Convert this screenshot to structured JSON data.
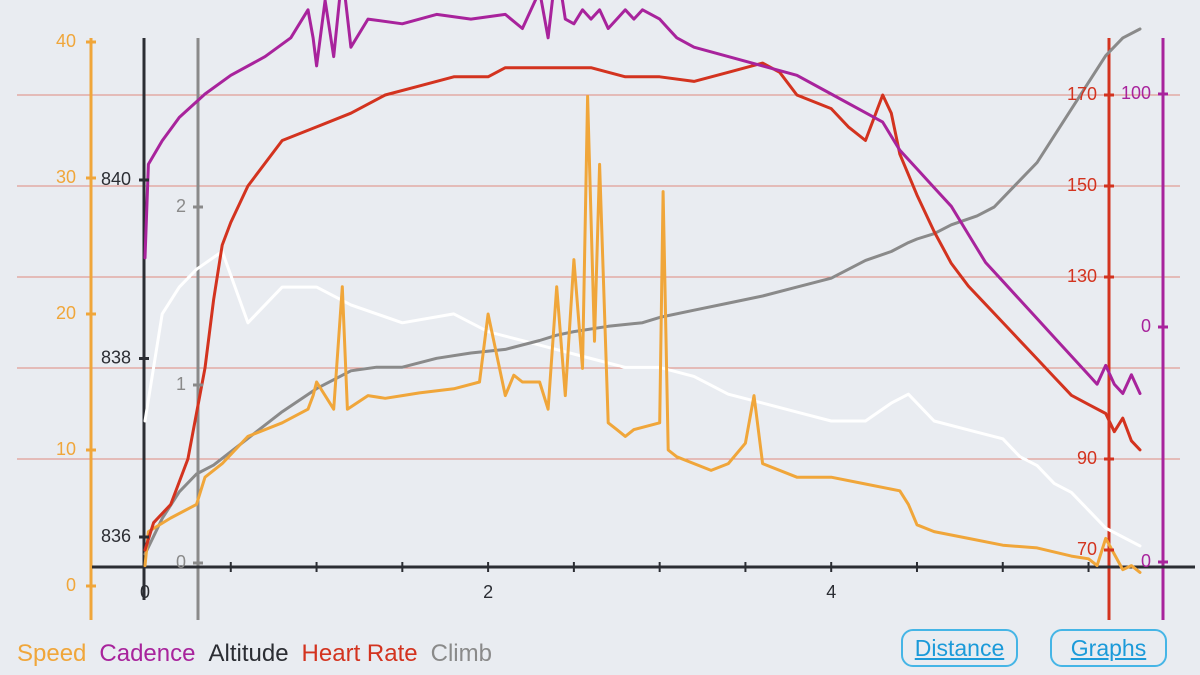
{
  "colors": {
    "speed": "#f0a63a",
    "cadence": "#a8239c",
    "altitude": "#2b2d33",
    "altitude_line": "#ffffff",
    "heart_rate": "#d3331f",
    "climb": "#8a8a8a",
    "accent": "#1b9ad9",
    "background": "#e9ecf1"
  },
  "legend": {
    "speed": "Speed",
    "cadence": "Cadence",
    "altitude": "Altitude",
    "heart_rate": "Heart Rate",
    "climb": "Climb"
  },
  "buttons": {
    "distance": "Distance",
    "graphs": "Graphs"
  },
  "chart_data": {
    "type": "line",
    "title": "",
    "xlabel": "",
    "x_ticks": [
      "0",
      "2",
      "4"
    ],
    "xlim": [
      0,
      5.8
    ],
    "axes": {
      "speed": {
        "ticks": [
          "0",
          "10",
          "20",
          "30",
          "40"
        ],
        "range": [
          0,
          40
        ]
      },
      "altitude": {
        "ticks": [
          "836",
          "838",
          "840"
        ],
        "range": [
          835.6,
          841.6
        ]
      },
      "climb": {
        "ticks": [
          "0",
          "1",
          "2"
        ],
        "range": [
          0,
          3.05
        ]
      },
      "heart_rate": {
        "ticks": [
          "70",
          "90",
          "130",
          "150",
          "170"
        ],
        "range": [
          62,
          190
        ]
      },
      "cadence": {
        "ticks": [
          "0",
          "0",
          "100"
        ],
        "range": [
          0,
          110
        ]
      }
    },
    "series": [
      {
        "name": "Speed",
        "axis": "speed",
        "x": [
          0,
          0.02,
          0.15,
          0.3,
          0.35,
          0.45,
          0.6,
          0.8,
          0.95,
          0.98,
          1.0,
          1.1,
          1.15,
          1.18,
          1.3,
          1.4,
          1.5,
          1.6,
          1.8,
          1.95,
          2.0,
          2.05,
          2.1,
          2.15,
          2.2,
          2.3,
          2.35,
          2.4,
          2.45,
          2.5,
          2.55,
          2.58,
          2.62,
          2.65,
          2.7,
          2.75,
          2.8,
          2.85,
          3.0,
          3.02,
          3.05,
          3.1,
          3.2,
          3.3,
          3.4,
          3.5,
          3.55,
          3.6,
          3.8,
          3.9,
          4.0,
          4.2,
          4.4,
          4.45,
          4.5,
          4.6,
          4.8,
          5.0,
          5.2,
          5.4,
          5.5,
          5.55,
          5.6,
          5.7,
          5.75,
          5.8
        ],
        "values": [
          1.5,
          4,
          5,
          6,
          8,
          9,
          11,
          12,
          13,
          14,
          15,
          13,
          22,
          13,
          14,
          13.8,
          14,
          14.2,
          14.5,
          15,
          20,
          17,
          14,
          15.5,
          15,
          15,
          13,
          22,
          14,
          24,
          16,
          36,
          18,
          31,
          12,
          11.5,
          11,
          11.5,
          12,
          29,
          10,
          9.5,
          9,
          8.5,
          9,
          10.5,
          14,
          9,
          8,
          8,
          8,
          7.5,
          7,
          6,
          4.5,
          4,
          3.5,
          3,
          2.8,
          2.2,
          2,
          1.5,
          3.5,
          1.2,
          1.5,
          1.0
        ]
      },
      {
        "name": "Cadence",
        "axis": "cadence",
        "x": [
          0,
          0.02,
          0.1,
          0.2,
          0.35,
          0.5,
          0.7,
          0.85,
          0.95,
          0.98,
          1.0,
          1.05,
          1.1,
          1.15,
          1.2,
          1.3,
          1.5,
          1.7,
          1.9,
          2.1,
          2.2,
          2.25,
          2.3,
          2.35,
          2.4,
          2.45,
          2.5,
          2.55,
          2.6,
          2.65,
          2.7,
          2.75,
          2.8,
          2.85,
          2.9,
          3.0,
          3.05,
          3.1,
          3.2,
          3.4,
          3.6,
          3.8,
          4.0,
          4.2,
          4.3,
          4.4,
          4.5,
          4.6,
          4.7,
          4.8,
          4.9,
          5.0,
          5.1,
          5.2,
          5.3,
          5.4,
          5.5,
          5.55,
          5.6,
          5.65,
          5.7,
          5.75,
          5.8
        ],
        "values": [
          65,
          85,
          90,
          95,
          100,
          104,
          108,
          112,
          118,
          112,
          106,
          120,
          108,
          126,
          110,
          116,
          115,
          117,
          116,
          117,
          114,
          118,
          122,
          112,
          128,
          116,
          115,
          118,
          116,
          118,
          114,
          116,
          118,
          116,
          118,
          116,
          114,
          112,
          110,
          108,
          106,
          104,
          100,
          96,
          94,
          88,
          84,
          80,
          76,
          70,
          64,
          60,
          56,
          52,
          48,
          44,
          40,
          38,
          42,
          38,
          36,
          40,
          36
        ]
      },
      {
        "name": "Altitude",
        "axis": "altitude",
        "x": [
          0,
          0.1,
          0.2,
          0.3,
          0.45,
          0.6,
          0.8,
          1.0,
          1.2,
          1.5,
          1.8,
          2.0,
          2.2,
          2.4,
          2.6,
          2.8,
          3.0,
          3.2,
          3.4,
          3.6,
          3.8,
          4.0,
          4.2,
          4.35,
          4.45,
          4.6,
          4.8,
          5.0,
          5.1,
          5.2,
          5.3,
          5.4,
          5.5,
          5.6,
          5.7,
          5.8
        ],
        "values": [
          837.3,
          838.5,
          838.8,
          839.0,
          839.2,
          838.4,
          838.8,
          838.8,
          838.6,
          838.4,
          838.5,
          838.3,
          838.2,
          838.1,
          838.0,
          837.9,
          837.9,
          837.8,
          837.6,
          837.5,
          837.4,
          837.3,
          837.3,
          837.5,
          837.6,
          837.3,
          837.2,
          837.1,
          836.9,
          836.8,
          836.6,
          836.5,
          836.3,
          836.1,
          836.0,
          835.9
        ]
      },
      {
        "name": "Heart Rate",
        "axis": "heart_rate",
        "x": [
          0,
          0.05,
          0.15,
          0.25,
          0.35,
          0.4,
          0.45,
          0.5,
          0.6,
          0.8,
          1.0,
          1.2,
          1.4,
          1.6,
          1.8,
          2.0,
          2.1,
          2.2,
          2.4,
          2.6,
          2.8,
          3.0,
          3.2,
          3.4,
          3.6,
          3.7,
          3.8,
          4.0,
          4.1,
          4.2,
          4.3,
          4.35,
          4.4,
          4.5,
          4.6,
          4.7,
          4.8,
          4.9,
          5.0,
          5.1,
          5.2,
          5.3,
          5.4,
          5.5,
          5.6,
          5.65,
          5.7,
          5.75,
          5.8
        ],
        "values": [
          70,
          76,
          80,
          90,
          110,
          125,
          137,
          142,
          150,
          160,
          163,
          166,
          170,
          172,
          174,
          174,
          176,
          176,
          176,
          176,
          174,
          174,
          173,
          175,
          177,
          175,
          170,
          167,
          163,
          160,
          170,
          166,
          157,
          148,
          140,
          133,
          128,
          124,
          120,
          116,
          112,
          108,
          104,
          102,
          100,
          96,
          99,
          94,
          92
        ]
      },
      {
        "name": "Climb",
        "axis": "climb",
        "x": [
          0,
          0.05,
          0.1,
          0.2,
          0.3,
          0.4,
          0.6,
          0.8,
          1.0,
          1.2,
          1.35,
          1.5,
          1.7,
          1.9,
          2.1,
          2.3,
          2.4,
          2.5,
          2.7,
          2.9,
          3.0,
          3.2,
          3.4,
          3.6,
          3.8,
          4.0,
          4.2,
          4.35,
          4.45,
          4.5,
          4.6,
          4.7,
          4.85,
          4.95,
          5.0,
          5.1,
          5.2,
          5.3,
          5.4,
          5.5,
          5.6,
          5.7,
          5.8
        ],
        "values": [
          0.05,
          0.15,
          0.25,
          0.4,
          0.5,
          0.55,
          0.7,
          0.85,
          0.98,
          1.08,
          1.1,
          1.1,
          1.15,
          1.18,
          1.2,
          1.25,
          1.28,
          1.3,
          1.33,
          1.35,
          1.38,
          1.42,
          1.46,
          1.5,
          1.55,
          1.6,
          1.7,
          1.75,
          1.8,
          1.82,
          1.85,
          1.9,
          1.95,
          2.0,
          2.05,
          2.15,
          2.25,
          2.4,
          2.55,
          2.7,
          2.85,
          2.95,
          3.0
        ]
      }
    ]
  }
}
